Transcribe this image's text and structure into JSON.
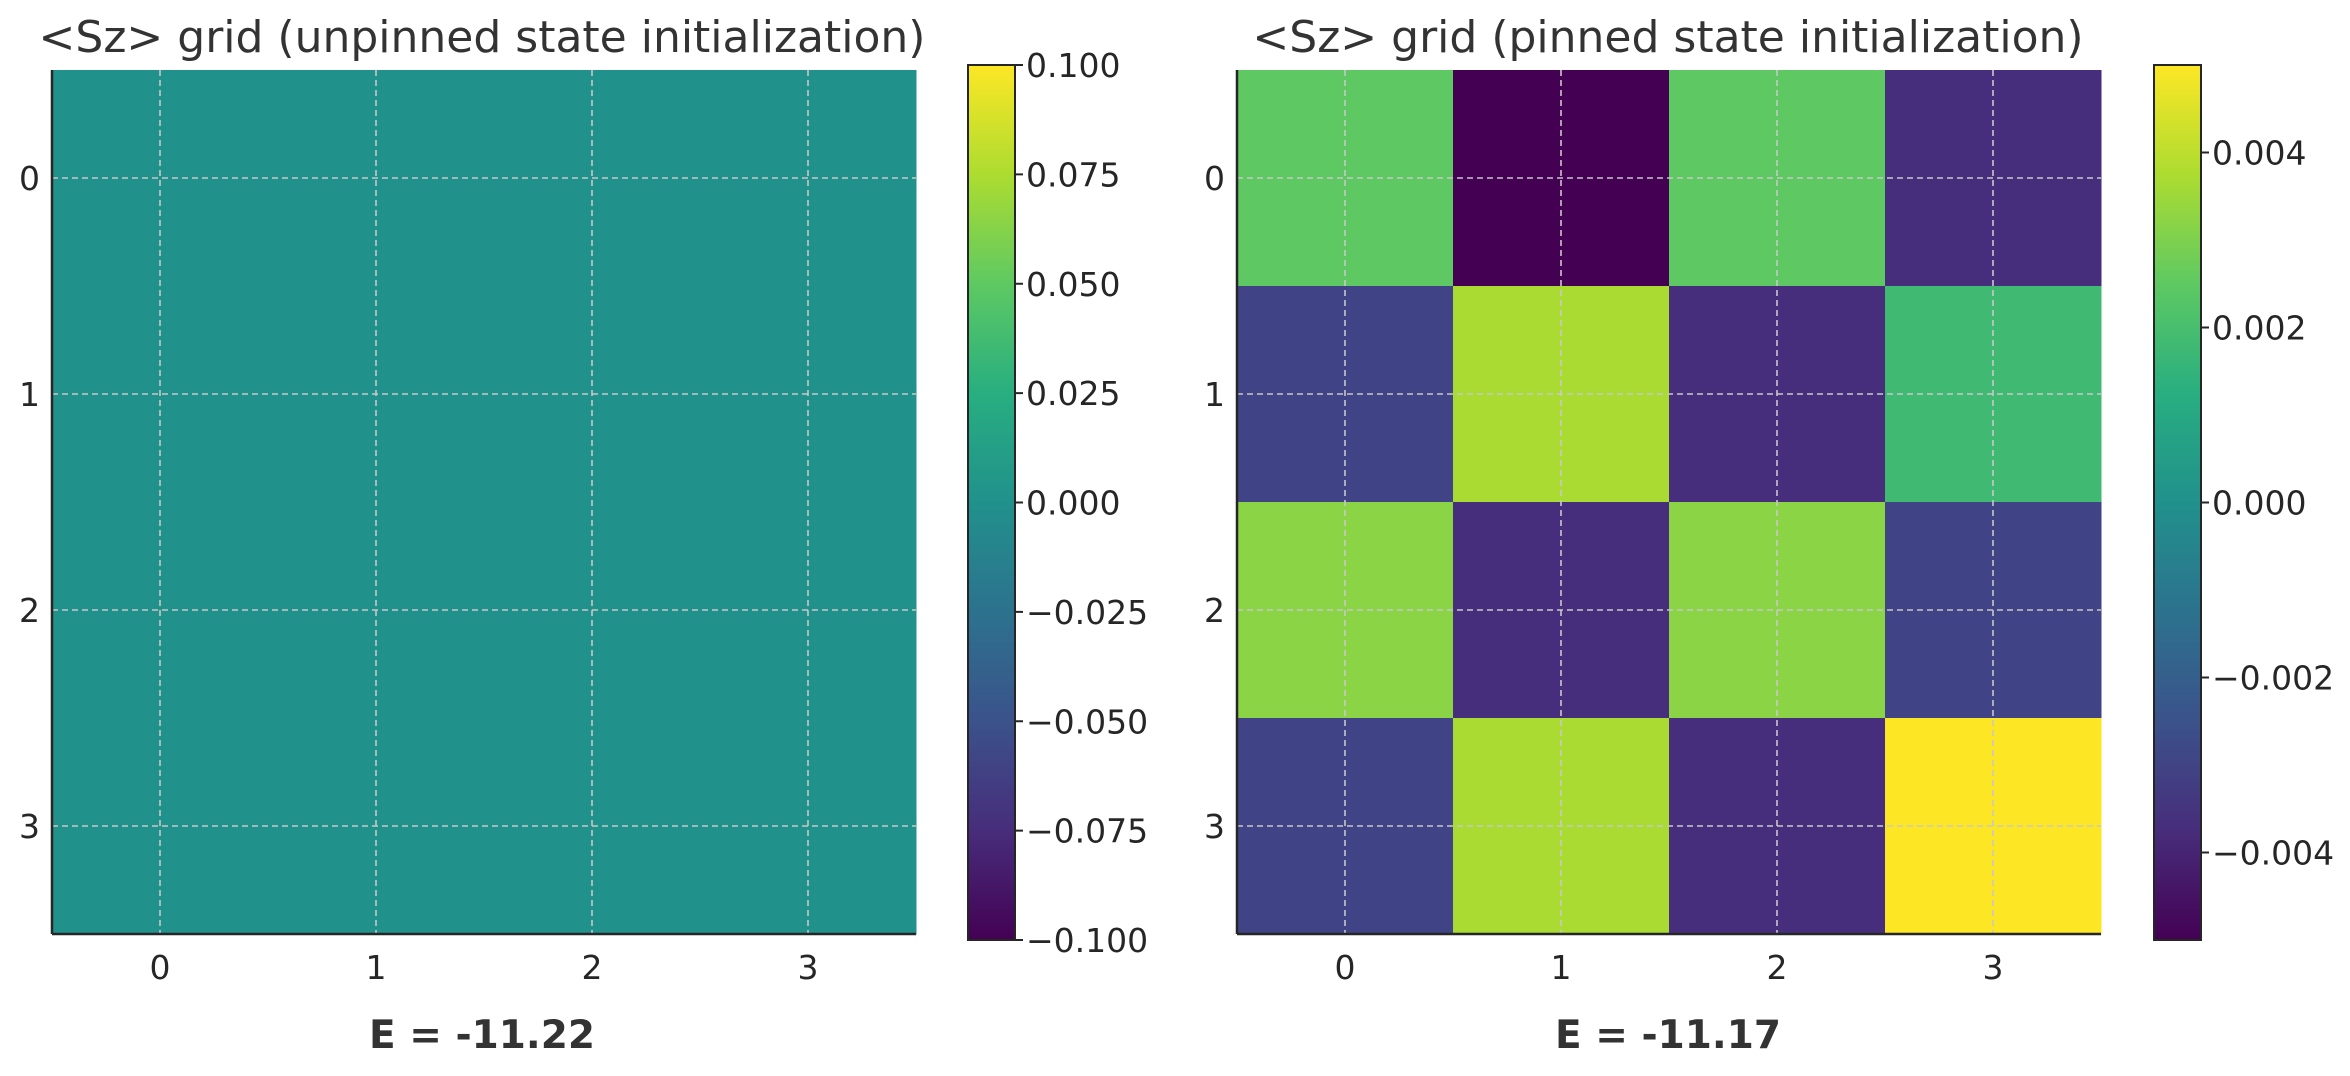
{
  "chart_data": [
    {
      "type": "heatmap",
      "title": "<Sz> grid (unpinned state initialization)",
      "xlabel": "E = -11.22",
      "ylabel": "",
      "x_ticks": [
        "0",
        "1",
        "2",
        "3"
      ],
      "y_ticks": [
        "0",
        "1",
        "2",
        "3"
      ],
      "values": [
        [
          0,
          0,
          0,
          0
        ],
        [
          0,
          0,
          0,
          0
        ],
        [
          0,
          0,
          0,
          0
        ],
        [
          0,
          0,
          0,
          0
        ]
      ],
      "colormap": "viridis",
      "color_range": [
        -0.1,
        0.1
      ],
      "colorbar_ticks": [
        0.1,
        0.075,
        0.05,
        0.025,
        0.0,
        -0.025,
        -0.05,
        -0.075,
        -0.1
      ],
      "colorbar_tick_labels": [
        "0.100",
        "0.075",
        "0.050",
        "0.025",
        "0.000",
        "−0.025",
        "−0.050",
        "−0.075",
        "−0.100"
      ],
      "grid": true
    },
    {
      "type": "heatmap",
      "title": "<Sz> grid (pinned state initialization)",
      "xlabel": "E = -11.17",
      "ylabel": "",
      "x_ticks": [
        "0",
        "1",
        "2",
        "3"
      ],
      "y_ticks": [
        "0",
        "1",
        "2",
        "3"
      ],
      "values": [
        [
          0.0025,
          -0.005,
          0.0025,
          -0.0037
        ],
        [
          -0.003,
          0.0037,
          -0.0037,
          0.0018
        ],
        [
          0.0032,
          -0.0037,
          0.0032,
          -0.003
        ],
        [
          -0.003,
          0.0037,
          -0.0037,
          0.005
        ]
      ],
      "colormap": "viridis",
      "color_range": [
        -0.005,
        0.005
      ],
      "colorbar_ticks": [
        0.004,
        0.002,
        0.0,
        -0.002,
        -0.004
      ],
      "colorbar_tick_labels": [
        "0.004",
        "0.002",
        "0.000",
        "−0.002",
        "−0.004"
      ],
      "grid": true
    }
  ]
}
